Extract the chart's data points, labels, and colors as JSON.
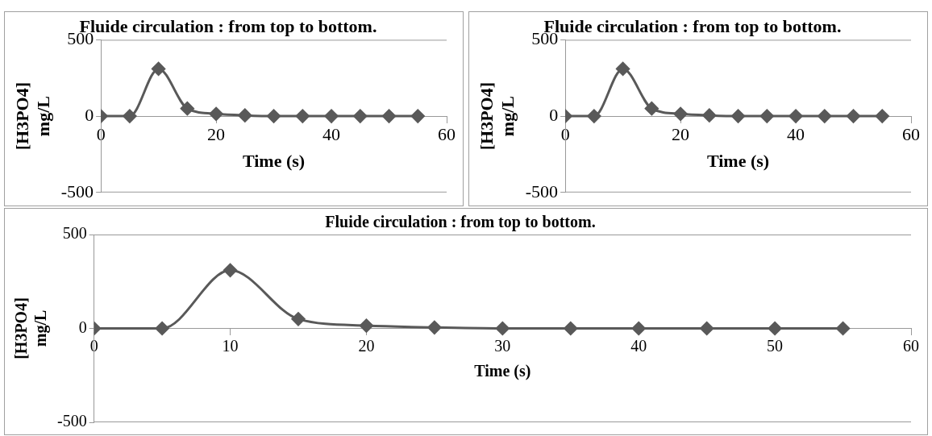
{
  "chart_data": [
    {
      "type": "line",
      "title": "Fluide circulation : from top to bottom.",
      "xlabel": "Time (s)",
      "ylabel": "[H3PO4] mg/L",
      "x": [
        0,
        5,
        10,
        15,
        20,
        25,
        30,
        35,
        40,
        45,
        50,
        55
      ],
      "series": [
        {
          "color": "#595959",
          "values": [
            0,
            0,
            310,
            50,
            15,
            5,
            0,
            0,
            0,
            0,
            0,
            0
          ]
        }
      ],
      "xlim": [
        0,
        60
      ],
      "xticks": [
        0,
        20,
        40,
        60
      ],
      "ylim": [
        -500,
        500
      ],
      "yticks": [
        -500,
        0,
        500
      ],
      "legend": false,
      "marker": "diamond",
      "line_style": "solid"
    },
    {
      "type": "line",
      "title": "Fluide circulation : from top to bottom.",
      "xlabel": "Time (s)",
      "ylabel": "[H3PO4] mg/L",
      "x": [
        0,
        5,
        10,
        15,
        20,
        25,
        30,
        35,
        40,
        45,
        50,
        55
      ],
      "series": [
        {
          "color": "#595959",
          "values": [
            0,
            0,
            310,
            50,
            15,
            5,
            0,
            0,
            0,
            0,
            0,
            0
          ]
        }
      ],
      "xlim": [
        0,
        60
      ],
      "xticks": [
        0,
        20,
        40,
        60
      ],
      "ylim": [
        -500,
        500
      ],
      "yticks": [
        -500,
        0,
        500
      ],
      "legend": false,
      "marker": "diamond",
      "line_style": "solid"
    },
    {
      "type": "line",
      "title": "Fluide circulation : from top to bottom.",
      "xlabel": "Time (s)",
      "ylabel": "[H3PO4] mg/L",
      "x": [
        0,
        5,
        10,
        15,
        20,
        25,
        30,
        35,
        40,
        45,
        50,
        55
      ],
      "series": [
        {
          "color": "#595959",
          "values": [
            0,
            0,
            310,
            50,
            15,
            5,
            0,
            0,
            0,
            0,
            0,
            0
          ]
        }
      ],
      "xlim": [
        0,
        60
      ],
      "xticks": [
        0,
        10,
        20,
        30,
        40,
        50,
        60
      ],
      "ylim": [
        -500,
        500
      ],
      "yticks": [
        -500,
        0,
        500
      ],
      "legend": false,
      "marker": "diamond",
      "line_style": "solid"
    }
  ]
}
